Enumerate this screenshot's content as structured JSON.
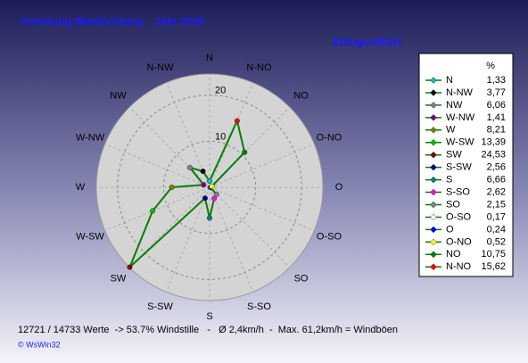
{
  "chart_data": {
    "type": "radar",
    "title": "Verteilung Windrichtung    Jahr 2016",
    "subtitle": "Ettingen/Eifel",
    "legend_header": "%",
    "categories": [
      "N",
      "N-NW",
      "NW",
      "W-NW",
      "W",
      "W-SW",
      "SW",
      "S-SW",
      "S",
      "S-SO",
      "SO",
      "O-SO",
      "O",
      "O-NO",
      "NO",
      "N-NO"
    ],
    "values": [
      1.33,
      3.77,
      6.06,
      1.41,
      8.21,
      13.39,
      24.53,
      2.56,
      6.66,
      2.62,
      2.15,
      0.17,
      0.24,
      0.52,
      10.75,
      15.62
    ],
    "value_labels": [
      "1,33",
      "3,77",
      "6,06",
      "1,41",
      "8,21",
      "13,39",
      "24,53",
      "2,56",
      "6,66",
      "2,62",
      "2,15",
      "0,17",
      "0,24",
      "0,52",
      "10,75",
      "15,62"
    ],
    "point_colors": [
      "#00c0c0",
      "#000000",
      "#808080",
      "#800080",
      "#808000",
      "#00c000",
      "#800000",
      "#000080",
      "#008080",
      "#ff00ff",
      "#808080",
      "#ffffff",
      "#0000ff",
      "#ffff00",
      "#008000",
      "#ff0000"
    ],
    "color": "#008000",
    "rlim": [
      0,
      25
    ],
    "rticks": [
      10,
      20
    ],
    "footer": "12721 / 14733 Werte  -> 53.7% Windstille   -   Ø 2,4km/h  -  Max. 61,2km/h = Windböen",
    "credit": "© WsWin32"
  }
}
